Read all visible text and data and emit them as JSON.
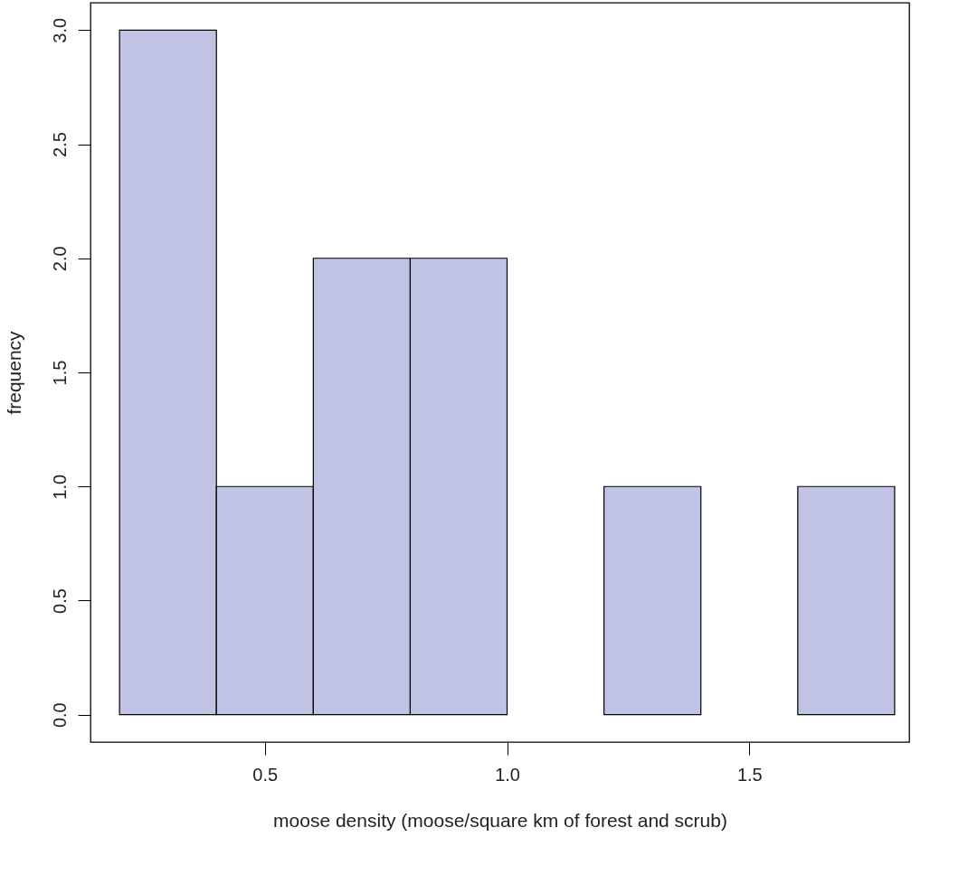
{
  "chart_data": {
    "type": "histogram",
    "xlabel": "moose density (moose/square km of forest and scrub)",
    "ylabel": "frequency",
    "bins": [
      0.2,
      0.4,
      0.6,
      0.8,
      1.0,
      1.2,
      1.4,
      1.6,
      1.8
    ],
    "values": [
      3,
      1,
      2,
      2,
      0,
      1,
      0,
      1
    ],
    "color": "#c0c3e3",
    "xlim": [
      0.14,
      1.83
    ],
    "xticks": [
      0.5,
      {
        "value": 1,
        "label": "1.0"
      },
      1.5
    ],
    "ylim": [
      -0.12,
      3.12
    ],
    "yticks": [
      {
        "value": 0,
        "label": "0.0"
      },
      0.5,
      {
        "value": 1,
        "label": "1.0"
      },
      1.5,
      {
        "value": 2,
        "label": "2.0"
      },
      2.5,
      {
        "value": 3,
        "label": "3.0"
      }
    ],
    "grid": false
  }
}
